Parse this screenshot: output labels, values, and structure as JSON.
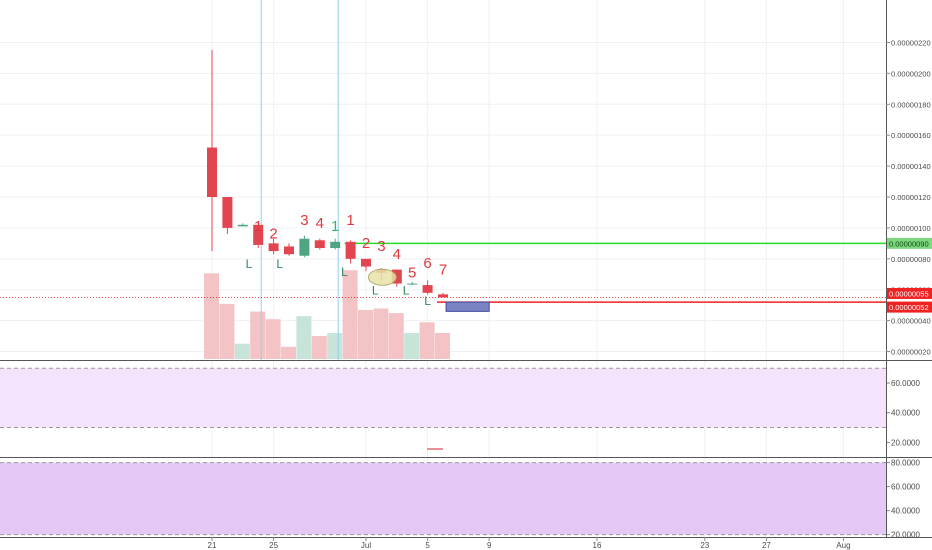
{
  "colors": {
    "up": "#4ea584",
    "down": "#e04550",
    "vol_up": "#c6e4d8",
    "vol_down": "#f4c3c6",
    "count_label": "#e0383f",
    "l_marker": "#2e8b57",
    "green_level": "#22dd22",
    "red_level": "#ee2222",
    "box_fill": "#7b83c2",
    "rsi_band": "#f3e4fb",
    "stoch_band": "#e6c8f7",
    "vline": "#8ecff0"
  },
  "chart_data": {
    "type": "candlestick",
    "price_axis": {
      "range": [
        1e-07,
        2.3e-06
      ],
      "ticks": [
        "0.00000220",
        "0.00000200",
        "0.00000180",
        "0.00000160",
        "0.00000140",
        "0.00000120",
        "0.00000100",
        "0.00000080",
        "0.00000060",
        "0.00000040",
        "0.00000020"
      ]
    },
    "price_labels": [
      {
        "text": "0.00000090",
        "value": 9e-07,
        "color": "#22dd22"
      },
      {
        "text": "0.00000055",
        "value": 5.5e-07,
        "color": "#ee2222"
      },
      {
        "text": "0.00000052",
        "value": 5.2e-07,
        "color": "#ee2222"
      }
    ],
    "time_axis": {
      "labels": [
        {
          "text": "21",
          "day": 21
        },
        {
          "text": "25",
          "day": 25
        },
        {
          "text": "Jul",
          "day": 31
        },
        {
          "text": "5",
          "day": 35
        },
        {
          "text": "9",
          "day": 39
        },
        {
          "text": "16",
          "day": 46
        },
        {
          "text": "23",
          "day": 53
        },
        {
          "text": "27",
          "day": 57
        },
        {
          "text": "Aug",
          "day": 62
        }
      ]
    },
    "candles": [
      {
        "day": 21,
        "o": 1.52e-06,
        "h": 2.15e-06,
        "l": 8.5e-07,
        "c": 1.2e-06,
        "vol": 56
      },
      {
        "day": 22,
        "o": 1.2e-06,
        "h": 1.2e-06,
        "l": 9.6e-07,
        "c": 1e-06,
        "vol": 36
      },
      {
        "day": 23,
        "o": 1.01e-06,
        "h": 1.03e-06,
        "l": 1.01e-06,
        "c": 1.02e-06,
        "vol": 10
      },
      {
        "day": 24,
        "o": 1.02e-06,
        "h": 1.02e-06,
        "l": 8.7e-07,
        "c": 8.9e-07,
        "vol": 31
      },
      {
        "day": 25,
        "o": 9e-07,
        "h": 9.3e-07,
        "l": 8.3e-07,
        "c": 8.5e-07,
        "vol": 26
      },
      {
        "day": 26,
        "o": 8.8e-07,
        "h": 9e-07,
        "l": 8.2e-07,
        "c": 8.3e-07,
        "vol": 8
      },
      {
        "day": 27,
        "o": 8.2e-07,
        "h": 9.5e-07,
        "l": 8.1e-07,
        "c": 9.3e-07,
        "vol": 28
      },
      {
        "day": 28,
        "o": 9.2e-07,
        "h": 9.3e-07,
        "l": 8.6e-07,
        "c": 8.7e-07,
        "vol": 15
      },
      {
        "day": 29,
        "o": 8.7e-07,
        "h": 9.3e-07,
        "l": 8.6e-07,
        "c": 9.1e-07,
        "vol": 17
      },
      {
        "day": 30,
        "o": 9.1e-07,
        "h": 9.2e-07,
        "l": 7.7e-07,
        "c": 8e-07,
        "vol": 58
      },
      {
        "day": 31,
        "o": 8e-07,
        "h": 8e-07,
        "l": 7.2e-07,
        "c": 7.5e-07,
        "vol": 32
      },
      {
        "day": 32,
        "o": 7.3e-07,
        "h": 7.4e-07,
        "l": 6.6e-07,
        "c": 7.1e-07,
        "vol": 33
      },
      {
        "day": 33,
        "o": 7.3e-07,
        "h": 7.3e-07,
        "l": 6.2e-07,
        "c": 6.4e-07,
        "vol": 30
      },
      {
        "day": 34,
        "o": 6.4e-07,
        "h": 6.5e-07,
        "l": 6.3e-07,
        "c": 6.4e-07,
        "vol": 17
      },
      {
        "day": 35,
        "o": 6.3e-07,
        "h": 6.6e-07,
        "l": 5.7e-07,
        "c": 5.8e-07,
        "vol": 24
      },
      {
        "day": 36,
        "o": 5.7e-07,
        "h": 5.8e-07,
        "l": 5.5e-07,
        "c": 5.5e-07,
        "vol": 17
      }
    ],
    "count_labels": [
      {
        "text": "1",
        "day": 24,
        "price": 9.8e-07
      },
      {
        "text": "2",
        "day": 25,
        "price": 9.3e-07
      },
      {
        "text": "3",
        "day": 27,
        "price": 1.02e-06
      },
      {
        "text": "4",
        "day": 28,
        "price": 1e-06
      },
      {
        "text": "1",
        "day": 29,
        "price": 9.8e-07,
        "color": "#3fb06a"
      },
      {
        "text": "1",
        "day": 30,
        "price": 1.02e-06
      },
      {
        "text": "2",
        "day": 31,
        "price": 8.7e-07
      },
      {
        "text": "3",
        "day": 32,
        "price": 8.5e-07
      },
      {
        "text": "4",
        "day": 33,
        "price": 8e-07
      },
      {
        "text": "5",
        "day": 34,
        "price": 6.8e-07
      },
      {
        "text": "6",
        "day": 35,
        "price": 7.4e-07
      },
      {
        "text": "7",
        "day": 36,
        "price": 7e-07
      }
    ],
    "l_markers": [
      {
        "text": "L",
        "day": 23.4,
        "price": 7.4e-07
      },
      {
        "text": "L",
        "day": 25.4,
        "price": 7.4e-07
      },
      {
        "text": "L",
        "day": 29.6,
        "price": 6.9e-07
      },
      {
        "text": "L",
        "day": 31.6,
        "price": 5.7e-07
      },
      {
        "text": "L",
        "day": 33.6,
        "price": 5.7e-07
      },
      {
        "text": "L",
        "day": 35,
        "price": 5e-07
      }
    ],
    "horizontal_levels": [
      {
        "price": 9e-07,
        "from_day": 30,
        "color": "#22dd22"
      },
      {
        "price": 5.2e-07,
        "from_day": 36,
        "color": "#ee2222"
      }
    ],
    "dotted_level": {
      "price": 5.5e-07,
      "color": "#ee2222"
    },
    "box": {
      "from_day": 36.2,
      "to_day": 39,
      "top": 5.2e-07,
      "bottom": 4.6e-07
    },
    "ellipse": {
      "day": 32,
      "price": 7e-07
    },
    "vertical_lines": [
      {
        "day": 24
      },
      {
        "day": 29
      }
    ],
    "indicator_panes": [
      {
        "ticks": [
          "60.0000",
          "40.0000",
          "20.0000"
        ],
        "tick_values": [
          60,
          40,
          20
        ],
        "range": [
          11.5,
          71.5
        ],
        "band": [
          30,
          70
        ]
      },
      {
        "ticks": [
          "80.0000",
          "60.0000",
          "40.0000",
          "20.0000"
        ],
        "tick_values": [
          80,
          60,
          40,
          20
        ],
        "range": [
          18,
          83
        ],
        "band": [
          20,
          80
        ]
      }
    ]
  }
}
